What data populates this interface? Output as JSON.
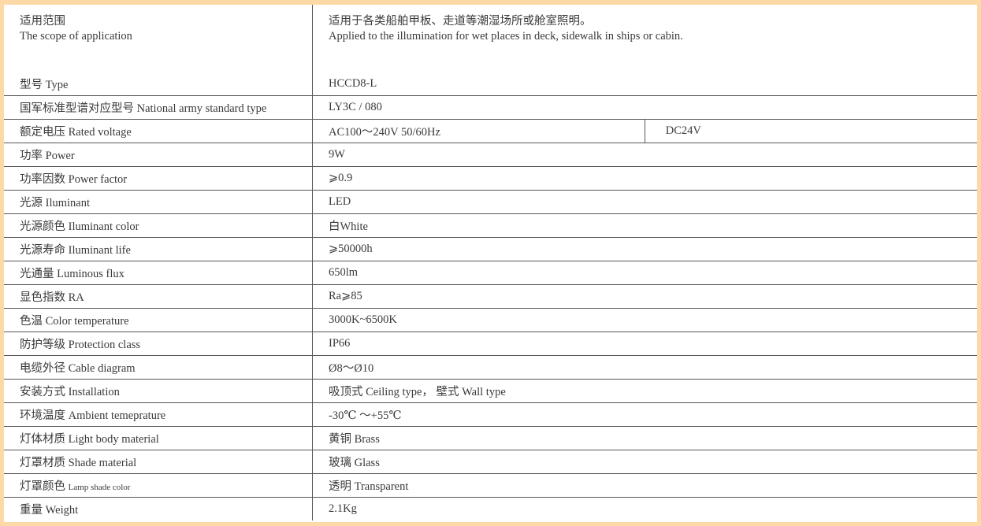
{
  "scope": {
    "label_cn": "适用范围",
    "label_en": "The scope of application",
    "value_cn": "适用于各类船舶甲板、走道等潮湿场所或舱室照明。",
    "value_en": "Applied to the illumination for wet places in deck, sidewalk in ships or cabin."
  },
  "rows": [
    {
      "label": "型号 Type",
      "value": "HCCD8-L"
    },
    {
      "label": "国军标准型谱对应型号 National army standard type",
      "value": "LY3C / 080"
    },
    {
      "label": "额定电压 Rated voltage",
      "value": "AC100～240V 50/60Hz",
      "value2": "DC24V"
    },
    {
      "label": "功率 Power",
      "value": "9W"
    },
    {
      "label": "功率因数 Power factor",
      "value": "⩾0.9"
    },
    {
      "label": "光源 Iluminant",
      "value": "LED"
    },
    {
      "label": "光源颜色 Iluminant color",
      "value": "白White"
    },
    {
      "label": "光源寿命 Iluminant life",
      "value": "⩾50000h"
    },
    {
      "label": "光通量 Luminous flux",
      "value": "650lm"
    },
    {
      "label": "显色指数 RA",
      "value": "Ra⩾85"
    },
    {
      "label": "色温 Color temperature",
      "value": "3000K~6500K"
    },
    {
      "label": "防护等级 Protection class",
      "value": "IP66"
    },
    {
      "label": "电缆外径 Cable diagram",
      "value": "Ø8～Ø10"
    },
    {
      "label": "安装方式 Installation",
      "value": "吸顶式 Ceiling type， 壁式 Wall type"
    },
    {
      "label": "环境温度 Ambient temeprature",
      "value": "-30℃ ～+55℃"
    },
    {
      "label": "灯体材质 Light body material",
      "value": "黄铜 Brass"
    },
    {
      "label": "灯罩材质 Shade material",
      "value": "玻璃 Glass"
    },
    {
      "label_cn": "灯罩颜色",
      "label_en": "Lamp shade color",
      "value": "透明 Transparent"
    },
    {
      "label": "重量 Weight",
      "value": "2.1Kg"
    }
  ]
}
